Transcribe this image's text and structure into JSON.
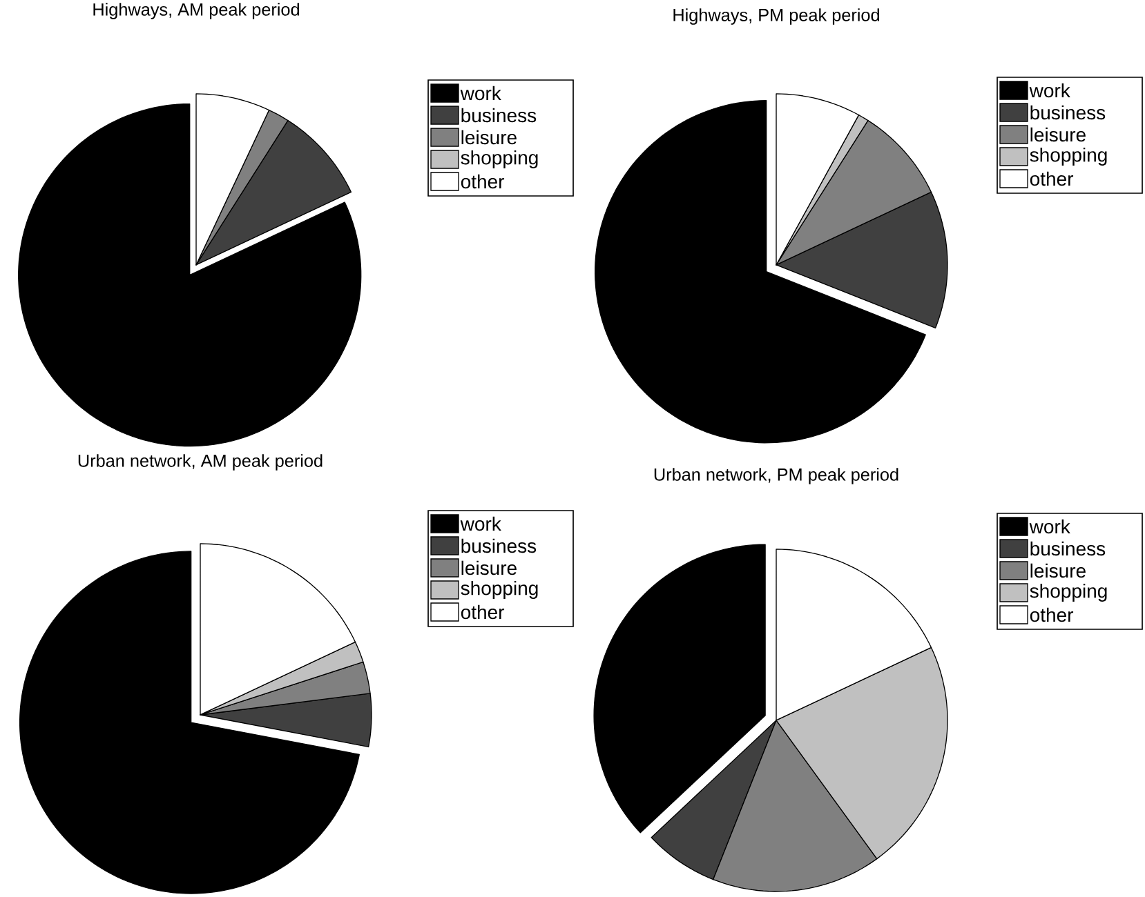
{
  "chart_data": [
    {
      "type": "pie",
      "title": "Highways, AM peak period",
      "categories": [
        "work",
        "business",
        "leisure",
        "shopping",
        "other"
      ],
      "values": [
        82,
        9,
        2,
        0,
        7
      ],
      "colors": [
        "#000000",
        "#404040",
        "#808080",
        "#c0c0c0",
        "#ffffff"
      ],
      "legend": "top right"
    },
    {
      "type": "pie",
      "title": "Highways, PM peak period",
      "categories": [
        "work",
        "business",
        "leisure",
        "shopping",
        "other"
      ],
      "values": [
        69,
        13,
        9,
        1,
        8
      ],
      "colors": [
        "#000000",
        "#404040",
        "#808080",
        "#c0c0c0",
        "#ffffff"
      ],
      "legend": "top right"
    },
    {
      "type": "pie",
      "title": "Urban network, AM peak period",
      "categories": [
        "work",
        "business",
        "leisure",
        "shopping",
        "other"
      ],
      "values": [
        72,
        5,
        3,
        2,
        18
      ],
      "colors": [
        "#000000",
        "#404040",
        "#808080",
        "#c0c0c0",
        "#ffffff"
      ],
      "legend": "top right"
    },
    {
      "type": "pie",
      "title": "Urban network, PM peak period",
      "categories": [
        "work",
        "business",
        "leisure",
        "shopping",
        "other"
      ],
      "values": [
        37,
        7,
        16,
        22,
        18
      ],
      "colors": [
        "#000000",
        "#404040",
        "#808080",
        "#c0c0c0",
        "#ffffff"
      ],
      "legend": "top right"
    }
  ]
}
